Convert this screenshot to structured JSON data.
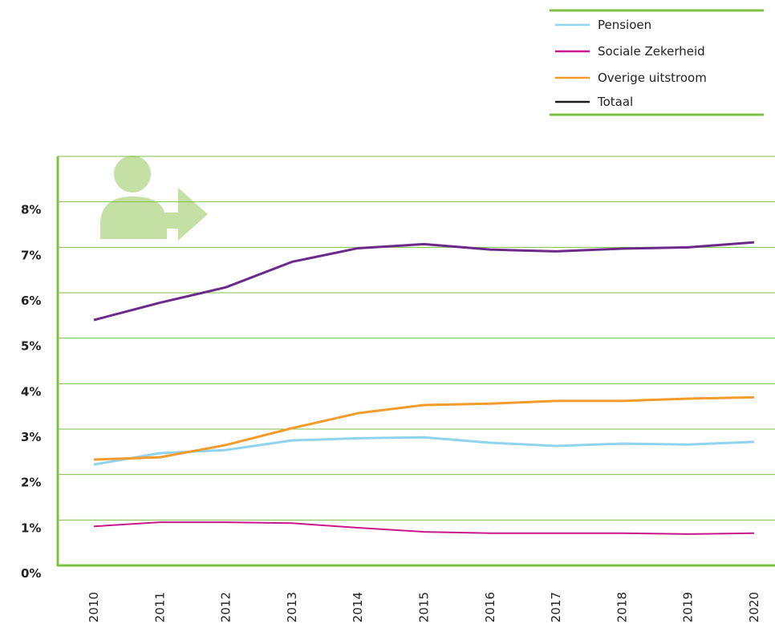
{
  "chart_data": {
    "type": "line",
    "categories": [
      "2010",
      "2011",
      "2012",
      "2013",
      "2014",
      "2015",
      "2016",
      "2017",
      "2018",
      "2019",
      "2020"
    ],
    "series": [
      {
        "name": "Pensioen",
        "color": "#8fd3ef",
        "legend_color": "#8fd3ef",
        "values": [
          2.22,
          2.47,
          2.54,
          2.75,
          2.8,
          2.82,
          2.7,
          2.63,
          2.68,
          2.66,
          2.72
        ]
      },
      {
        "name": "Sociale Zekerheid",
        "color": "#c8178a",
        "legend_color": "#c8178a",
        "values": [
          0.86,
          0.95,
          0.95,
          0.93,
          0.83,
          0.74,
          0.71,
          0.71,
          0.71,
          0.69,
          0.71
        ]
      },
      {
        "name": "Overige uitstroom",
        "color": "#f39b2b",
        "legend_color": "#f39b2b",
        "values": [
          2.33,
          2.38,
          2.65,
          3.02,
          3.35,
          3.53,
          3.56,
          3.62,
          3.62,
          3.67,
          3.7
        ]
      },
      {
        "name": "Totaal",
        "color": "#6b2a8a",
        "legend_color": "#1a1a1a",
        "values": [
          5.4,
          5.78,
          6.12,
          6.68,
          6.98,
          7.07,
          6.95,
          6.91,
          6.97,
          7.0,
          7.11
        ]
      }
    ],
    "ylim": [
      0,
      9
    ],
    "yticks": [
      {
        "value": 0,
        "label": "0%"
      },
      {
        "value": 1,
        "label": "1%"
      },
      {
        "value": 2,
        "label": "2%"
      },
      {
        "value": 3,
        "label": "3%"
      },
      {
        "value": 4,
        "label": "4%"
      },
      {
        "value": 5,
        "label": "5%"
      },
      {
        "value": 6,
        "label": "6%"
      },
      {
        "value": 7,
        "label": "7%"
      },
      {
        "value": 8,
        "label": "8%"
      }
    ],
    "grid": true,
    "legend": "top-right"
  }
}
